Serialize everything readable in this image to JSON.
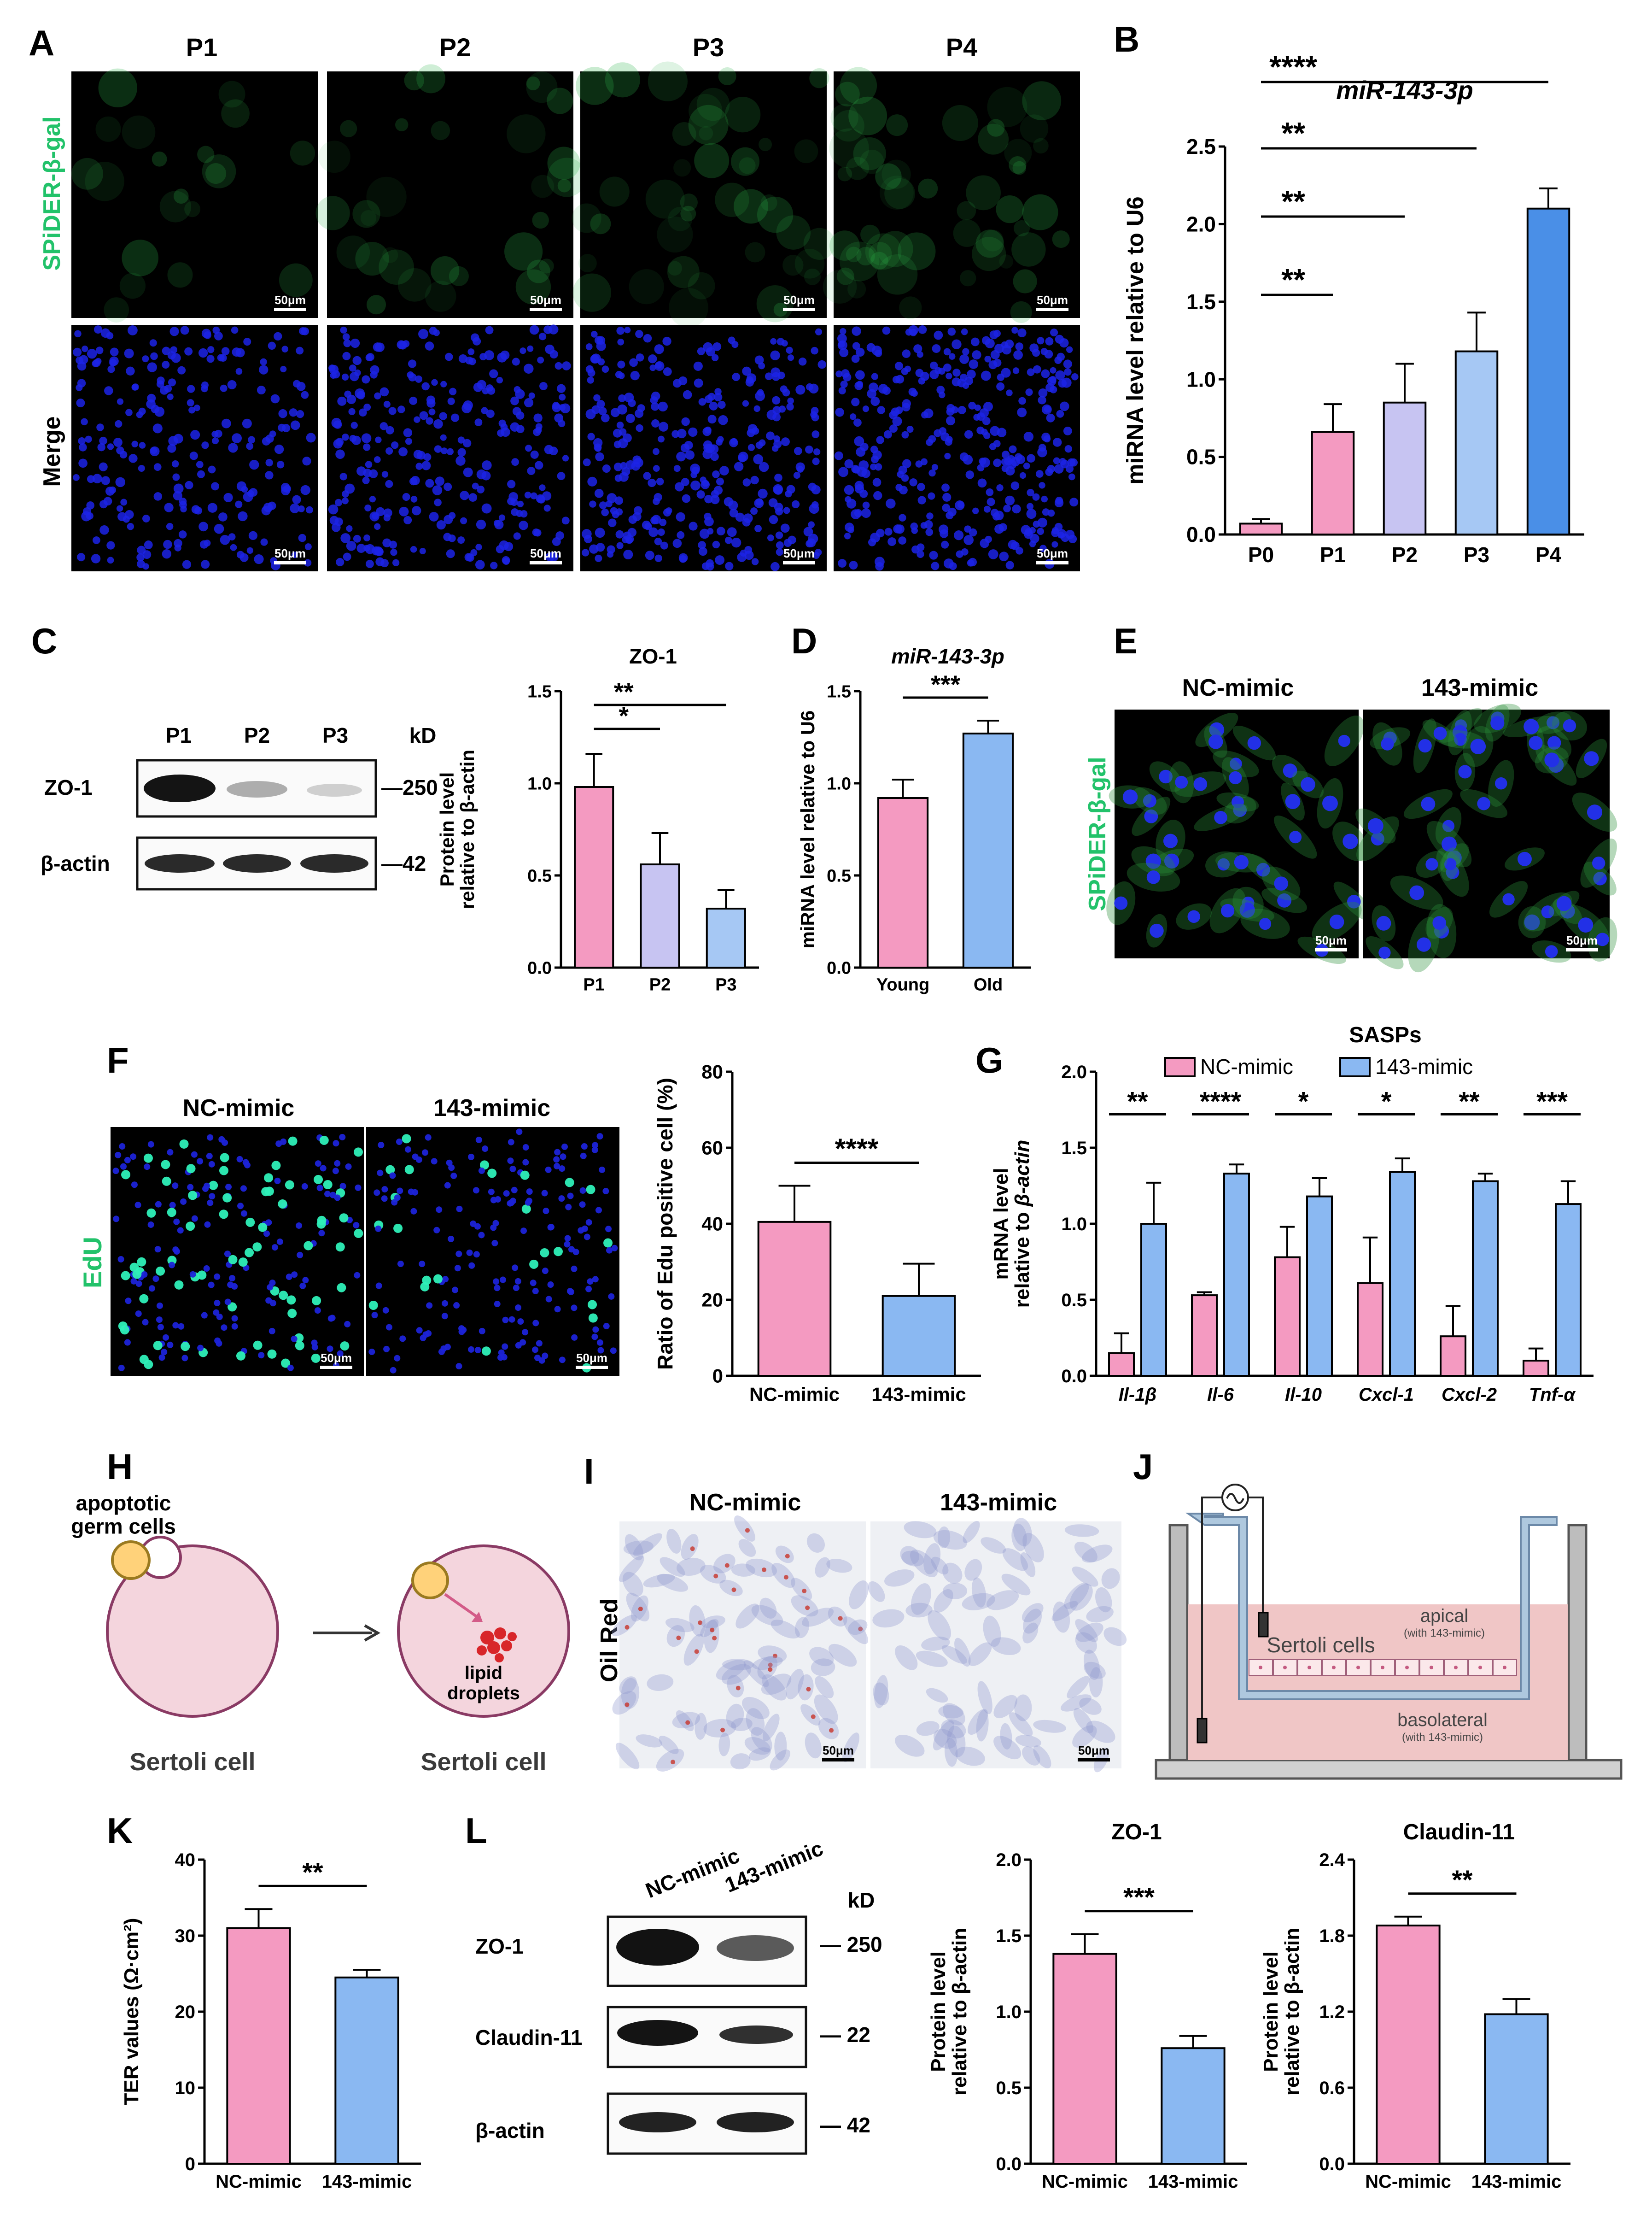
{
  "panels": {
    "A": "A",
    "B": "B",
    "C": "C",
    "D": "D",
    "E": "E",
    "F": "F",
    "G": "G",
    "H": "H",
    "I": "I",
    "J": "J",
    "K": "K",
    "L": "L"
  },
  "colors": {
    "pink": "#f49ac1",
    "lavender": "#c7c4f2",
    "lightblue": "#a6c8f4",
    "blue": "#4a8fe7",
    "midblue": "#8ab8f2",
    "nuclei": "#1a22d8",
    "green": "#22c26a",
    "axis": "#000000"
  },
  "scalebar": "50μm",
  "panelA": {
    "columns": [
      "P1",
      "P2",
      "P3",
      "P4"
    ],
    "rows": [
      "SPiDER-β-gal",
      "Merge"
    ]
  },
  "panelC_blot": {
    "lanes": [
      "P1",
      "P2",
      "P3"
    ],
    "unit": "kD",
    "rows": [
      {
        "label": "ZO-1",
        "kd": "—250"
      },
      {
        "label": "β-actin",
        "kd": "—42"
      }
    ]
  },
  "panelE": {
    "columns": [
      "NC-mimic",
      "143-mimic"
    ],
    "row": "SPiDER-β-gal"
  },
  "panelF_img": {
    "columns": [
      "NC-mimic",
      "143-mimic"
    ],
    "row": "EdU"
  },
  "panelH": {
    "germ": "apoptotic\ngerm cells",
    "cell1": "Sertoli cell",
    "cell2": "Sertoli cell",
    "lipid": "lipid\ndroplets"
  },
  "panelI": {
    "columns": [
      "NC-mimic",
      "143-mimic"
    ],
    "row": "Oil Red"
  },
  "panelJ": {
    "apical": "apical",
    "apical_sub": "(with 143-mimic)",
    "sertoli": "Sertoli cells",
    "basolateral": "basolateral",
    "basolateral_sub": "(with 143-mimic)"
  },
  "panelL_blot": {
    "lanes": [
      "NC-mimic",
      "143-mimic"
    ],
    "unit": "kD",
    "rows": [
      {
        "label": "ZO-1",
        "kd": "— 250"
      },
      {
        "label": "Claudin-11",
        "kd": "— 22"
      },
      {
        "label": "β-actin",
        "kd": "— 42"
      }
    ]
  },
  "chart_data": [
    {
      "id": "B",
      "type": "bar",
      "title": "miR-143-3p",
      "ylabel": "miRNA level relative to U6",
      "categories": [
        "P0",
        "P1",
        "P2",
        "P3",
        "P4"
      ],
      "values": [
        0.07,
        0.66,
        0.85,
        1.18,
        2.1
      ],
      "errors": [
        0.03,
        0.18,
        0.25,
        0.25,
        0.13
      ],
      "ylim": [
        0,
        2.5
      ],
      "yticks": [
        "0.0",
        "0.5",
        "1.0",
        "1.5",
        "2.0",
        "2.5"
      ],
      "colors": [
        "#f49ac1",
        "#f49ac1",
        "#c7c4f2",
        "#a6c8f4",
        "#4a8fe7"
      ],
      "sig": [
        {
          "from": 0,
          "to": 1,
          "label": "**"
        },
        {
          "from": 0,
          "to": 2,
          "label": "**"
        },
        {
          "from": 0,
          "to": 3,
          "label": "**"
        },
        {
          "from": 0,
          "to": 4,
          "label": "****"
        }
      ]
    },
    {
      "id": "C",
      "type": "bar",
      "title": "ZO-1",
      "ylabel": "Protein level\nrelative to β-actin",
      "categories": [
        "P1",
        "P2",
        "P3"
      ],
      "values": [
        0.98,
        0.56,
        0.32
      ],
      "errors": [
        0.18,
        0.17,
        0.1
      ],
      "ylim": [
        0,
        1.5
      ],
      "yticks": [
        "0.0",
        "0.5",
        "1.0",
        "1.5"
      ],
      "colors": [
        "#f49ac1",
        "#c7c4f2",
        "#a6c8f4"
      ],
      "sig": [
        {
          "from": 0,
          "to": 1,
          "label": "*"
        },
        {
          "from": 0,
          "to": 2,
          "label": "**"
        }
      ]
    },
    {
      "id": "D",
      "type": "bar",
      "title": "miR-143-3p",
      "ylabel": "miRNA level relative to U6",
      "categories": [
        "Young",
        "Old"
      ],
      "values": [
        0.92,
        1.27
      ],
      "errors": [
        0.1,
        0.07
      ],
      "ylim": [
        0,
        1.5
      ],
      "yticks": [
        "0.0",
        "0.5",
        "1.0",
        "1.5"
      ],
      "colors": [
        "#f49ac1",
        "#8ab8f2"
      ],
      "sig": [
        {
          "from": 0,
          "to": 1,
          "label": "***"
        }
      ]
    },
    {
      "id": "F",
      "type": "bar",
      "title": "",
      "ylabel": "Ratio of Edu positive cell (%)",
      "categories": [
        "NC-mimic",
        "143-mimic"
      ],
      "values": [
        40.5,
        21.0
      ],
      "errors": [
        9.5,
        8.5
      ],
      "ylim": [
        0,
        80
      ],
      "yticks": [
        "0",
        "20",
        "40",
        "60",
        "80"
      ],
      "colors": [
        "#f49ac1",
        "#8ab8f2"
      ],
      "sig": [
        {
          "from": 0,
          "to": 1,
          "label": "****"
        }
      ]
    },
    {
      "id": "G",
      "type": "bar",
      "title": "SASPs",
      "ylabel": "mRNA level\nrelative to β-actin",
      "categories": [
        "Il-1β",
        "Il-6",
        "Il-10",
        "Cxcl-1",
        "Cxcl-2",
        "Tnf-α"
      ],
      "series": [
        {
          "name": "NC-mimic",
          "values": [
            0.15,
            0.53,
            0.78,
            0.61,
            0.26,
            0.1
          ],
          "errors": [
            0.13,
            0.02,
            0.2,
            0.3,
            0.2,
            0.08
          ],
          "color": "#f49ac1"
        },
        {
          "name": "143-mimic",
          "values": [
            1.0,
            1.33,
            1.18,
            1.34,
            1.28,
            1.13
          ],
          "errors": [
            0.27,
            0.06,
            0.12,
            0.09,
            0.05,
            0.15
          ],
          "color": "#8ab8f2"
        }
      ],
      "ylim": [
        0,
        2.0
      ],
      "yticks": [
        "0.0",
        "0.5",
        "1.0",
        "1.5",
        "2.0"
      ],
      "sig": [
        "**",
        "****",
        "*",
        "*",
        "**",
        "***"
      ]
    },
    {
      "id": "K",
      "type": "bar",
      "title": "",
      "ylabel": "TER values (Ω·cm²)",
      "categories": [
        "NC-mimic",
        "143-mimic"
      ],
      "values": [
        31.0,
        24.5
      ],
      "errors": [
        2.5,
        1.0
      ],
      "ylim": [
        0,
        40
      ],
      "yticks": [
        "0",
        "10",
        "20",
        "30",
        "40"
      ],
      "colors": [
        "#f49ac1",
        "#8ab8f2"
      ],
      "sig": [
        {
          "from": 0,
          "to": 1,
          "label": "**"
        }
      ]
    },
    {
      "id": "L1",
      "type": "bar",
      "title": "ZO-1",
      "ylabel": "Protein level\nrelative to β-actin",
      "categories": [
        "NC-mimic",
        "143-mimic"
      ],
      "values": [
        1.38,
        0.76
      ],
      "errors": [
        0.13,
        0.08
      ],
      "ylim": [
        0,
        2.0
      ],
      "yticks": [
        "0.0",
        "0.5",
        "1.0",
        "1.5",
        "2.0"
      ],
      "colors": [
        "#f49ac1",
        "#8ab8f2"
      ],
      "sig": [
        {
          "from": 0,
          "to": 1,
          "label": "***"
        }
      ]
    },
    {
      "id": "L2",
      "type": "bar",
      "title": "Claudin-11",
      "ylabel": "Protein level\nrelative to β-actin",
      "categories": [
        "NC-mimic",
        "143-mimic"
      ],
      "values": [
        1.88,
        1.18
      ],
      "errors": [
        0.07,
        0.12
      ],
      "ylim": [
        0,
        2.4
      ],
      "yticks": [
        "0.0",
        "0.6",
        "1.2",
        "1.8",
        "2.4"
      ],
      "colors": [
        "#f49ac1",
        "#8ab8f2"
      ],
      "sig": [
        {
          "from": 0,
          "to": 1,
          "label": "**"
        }
      ]
    }
  ]
}
